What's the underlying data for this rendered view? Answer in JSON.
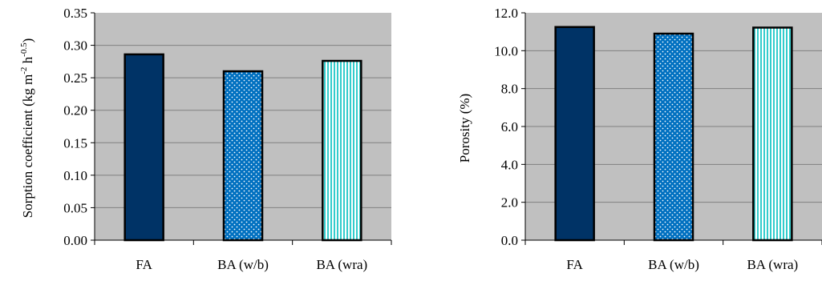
{
  "chart_data": [
    {
      "type": "bar",
      "categories": [
        "FA",
        "BA (w/b)",
        "BA (wra)"
      ],
      "values": [
        0.286,
        0.26,
        0.276
      ],
      "ylabel": "Sorption coefficient (kg  m-2 h-0.5)",
      "ylabel_parts": {
        "main": "Sorption coefficient (kg  m",
        "exp1": "-2",
        "mid": " h",
        "exp2": "-0.5",
        "close": ")"
      },
      "xlabel": "",
      "ylim": [
        0,
        0.35
      ],
      "yticks": [
        "0.00",
        "0.05",
        "0.10",
        "0.15",
        "0.20",
        "0.25",
        "0.30",
        "0.35"
      ],
      "grid": true,
      "plot_background": "#c0c0c0",
      "bar_styles": [
        "solid-navy",
        "blue-dots",
        "cyan-stripes"
      ]
    },
    {
      "type": "bar",
      "categories": [
        "FA",
        "BA (w/b)",
        "BA (wra)"
      ],
      "values": [
        11.25,
        10.9,
        11.22
      ],
      "ylabel": "Porosity (%)",
      "xlabel": "",
      "ylim": [
        0,
        12
      ],
      "yticks": [
        "0.0",
        "2.0",
        "4.0",
        "6.0",
        "8.0",
        "10.0",
        "12.0"
      ],
      "grid": true,
      "plot_background": "#c0c0c0",
      "bar_styles": [
        "solid-navy",
        "blue-dots",
        "cyan-stripes"
      ]
    }
  ],
  "colors": {
    "plot_bg": "#c0c0c0",
    "grid": "#808080",
    "navy": "#003366",
    "dots_bg": "#0070c0",
    "stripes_bg": "#33cccc"
  }
}
